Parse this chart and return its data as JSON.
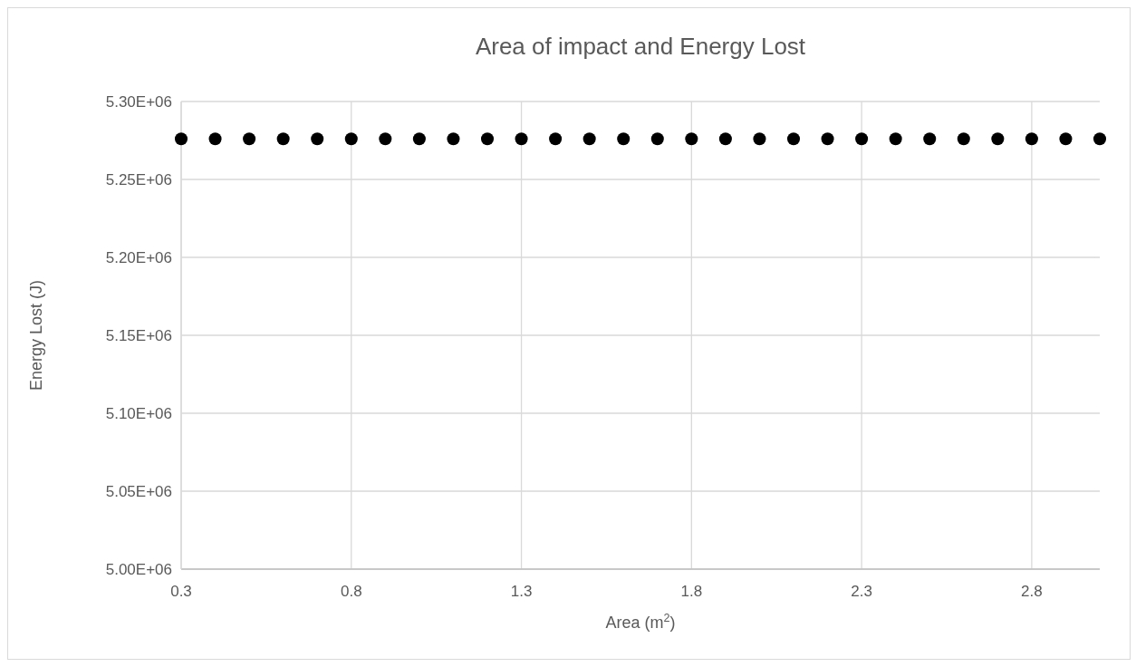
{
  "chart_data": {
    "type": "scatter",
    "title": "Area of impact and Energy Lost",
    "xlabel": "Area (m$^{2}$)",
    "ylabel": "Energy Lost (J)",
    "x": [
      0.3,
      0.4,
      0.5,
      0.6,
      0.7,
      0.8,
      0.9,
      1.0,
      1.1,
      1.2,
      1.3,
      1.4,
      1.5,
      1.6,
      1.7,
      1.8,
      1.9,
      2.0,
      2.1,
      2.2,
      2.3,
      2.4,
      2.5,
      2.6,
      2.7,
      2.8,
      2.9,
      3.0
    ],
    "series": [
      {
        "color": "#000000",
        "values": [
          5276000,
          5276000,
          5276000,
          5276000,
          5276000,
          5276000,
          5276000,
          5276000,
          5276000,
          5276000,
          5276000,
          5276000,
          5276000,
          5276000,
          5276000,
          5276000,
          5276000,
          5276000,
          5276000,
          5276000,
          5276000,
          5276000,
          5276000,
          5276000,
          5276000,
          5276000,
          5276000,
          5276000
        ]
      }
    ],
    "xlim": [
      0.3,
      3.0
    ],
    "xticks": [
      0.3,
      0.8,
      1.3,
      1.8,
      2.3,
      2.8
    ],
    "ylim": [
      5000000,
      5300000
    ],
    "yticks": [
      {
        "value": 5000000,
        "label": "5.00E+06"
      },
      {
        "value": 5050000,
        "label": "5.05E+06"
      },
      {
        "value": 5100000,
        "label": "5.10E+06"
      },
      {
        "value": 5150000,
        "label": "5.15E+06"
      },
      {
        "value": 5200000,
        "label": "5.20E+06"
      },
      {
        "value": 5250000,
        "label": "5.25E+06"
      },
      {
        "value": 5300000,
        "label": "5.30E+06"
      }
    ],
    "grid": true,
    "marker": "circle"
  }
}
